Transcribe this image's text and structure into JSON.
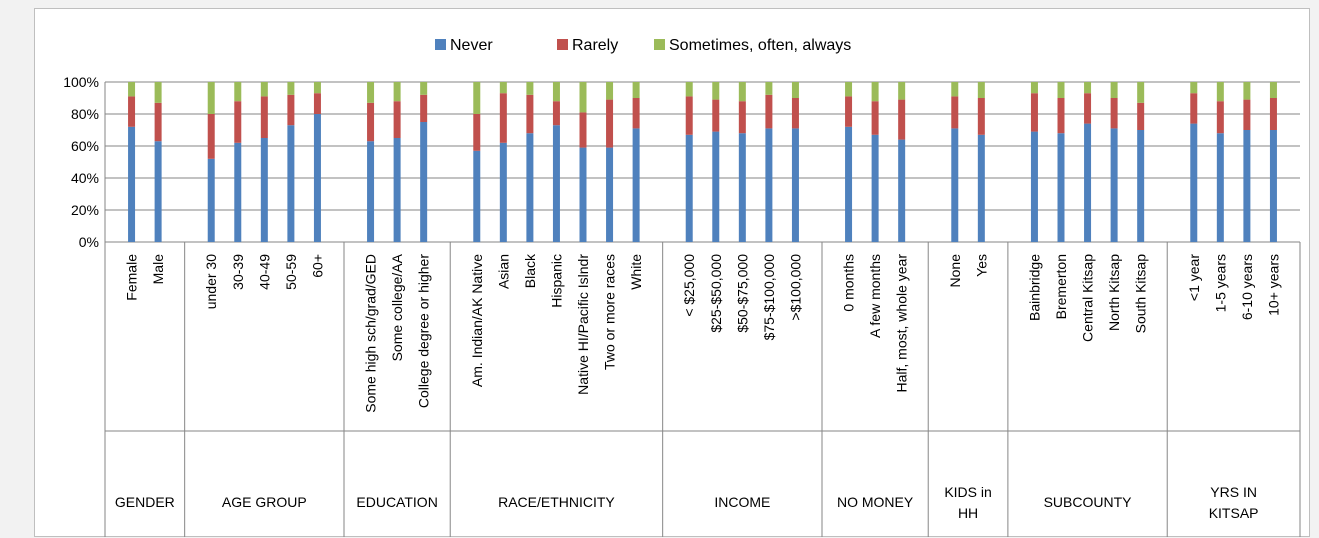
{
  "chart_data": {
    "type": "bar",
    "stacked": true,
    "percent": true,
    "yticks": [
      "0%",
      "20%",
      "40%",
      "60%",
      "80%",
      "100%"
    ],
    "ylim": [
      0,
      100
    ],
    "grid": true,
    "legend_position": "top",
    "series": [
      {
        "name": "Never",
        "color": "#4f81bd"
      },
      {
        "name": "Rarely",
        "color": "#c0504d"
      },
      {
        "name": "Sometimes, often, always",
        "color": "#9bbb59"
      }
    ],
    "groups": [
      {
        "label": [
          "GENDER"
        ],
        "categories": [
          {
            "label": "Female",
            "never": 72,
            "rarely": 19,
            "sometimes": 9
          },
          {
            "label": "Male",
            "never": 63,
            "rarely": 24,
            "sometimes": 13
          }
        ]
      },
      {
        "label": [
          "AGE GROUP"
        ],
        "categories": [
          {
            "label": "under 30",
            "never": 52,
            "rarely": 28,
            "sometimes": 20
          },
          {
            "label": "30-39",
            "never": 62,
            "rarely": 26,
            "sometimes": 12
          },
          {
            "label": "40-49",
            "never": 65,
            "rarely": 26,
            "sometimes": 9
          },
          {
            "label": "50-59",
            "never": 73,
            "rarely": 19,
            "sometimes": 8
          },
          {
            "label": "60+",
            "never": 80,
            "rarely": 13,
            "sometimes": 7
          }
        ]
      },
      {
        "label": [
          "EDUCATION"
        ],
        "categories": [
          {
            "label": "Some high sch/grad/GED",
            "never": 63,
            "rarely": 24,
            "sometimes": 13
          },
          {
            "label": "Some college/AA",
            "never": 65,
            "rarely": 23,
            "sometimes": 12
          },
          {
            "label": "College degree or higher",
            "never": 75,
            "rarely": 17,
            "sometimes": 8
          }
        ]
      },
      {
        "label": [
          "RACE/ETHNICITY"
        ],
        "categories": [
          {
            "label": "Am. Indian/AK Native",
            "never": 57,
            "rarely": 23,
            "sometimes": 20
          },
          {
            "label": "Asian",
            "never": 62,
            "rarely": 31,
            "sometimes": 7
          },
          {
            "label": "Black",
            "never": 68,
            "rarely": 24,
            "sometimes": 8
          },
          {
            "label": "Hispanic",
            "never": 73,
            "rarely": 15,
            "sometimes": 12
          },
          {
            "label": "Native HI/Pacific Islndr",
            "never": 59,
            "rarely": 22,
            "sometimes": 19
          },
          {
            "label": "Two or more races",
            "never": 59,
            "rarely": 30,
            "sometimes": 11
          },
          {
            "label": "White",
            "never": 71,
            "rarely": 19,
            "sometimes": 10
          }
        ]
      },
      {
        "label": [
          "INCOME"
        ],
        "categories": [
          {
            "label": "< $25,000",
            "never": 67,
            "rarely": 24,
            "sometimes": 9
          },
          {
            "label": "$25-$50,000",
            "never": 69,
            "rarely": 20,
            "sometimes": 11
          },
          {
            "label": "$50-$75,000",
            "never": 68,
            "rarely": 20,
            "sometimes": 12
          },
          {
            "label": "$75-$100,000",
            "never": 71,
            "rarely": 21,
            "sometimes": 8
          },
          {
            "label": ">$100,000",
            "never": 71,
            "rarely": 19,
            "sometimes": 10
          }
        ]
      },
      {
        "label": [
          "NO MONEY"
        ],
        "categories": [
          {
            "label": "0 months",
            "never": 72,
            "rarely": 19,
            "sometimes": 9
          },
          {
            "label": "A few months",
            "never": 67,
            "rarely": 21,
            "sometimes": 12
          },
          {
            "label": "Half, most, whole year",
            "never": 64,
            "rarely": 25,
            "sometimes": 11
          }
        ]
      },
      {
        "label": [
          "KIDS in",
          "HH"
        ],
        "categories": [
          {
            "label": "None",
            "never": 71,
            "rarely": 20,
            "sometimes": 9
          },
          {
            "label": "Yes",
            "never": 67,
            "rarely": 23,
            "sometimes": 10
          }
        ]
      },
      {
        "label": [
          "SUBCOUNTY"
        ],
        "categories": [
          {
            "label": "Bainbridge",
            "never": 69,
            "rarely": 24,
            "sometimes": 7
          },
          {
            "label": "Bremerton",
            "never": 68,
            "rarely": 22,
            "sometimes": 10
          },
          {
            "label": "Central Kitsap",
            "never": 74,
            "rarely": 19,
            "sometimes": 7
          },
          {
            "label": "North Kitsap",
            "never": 71,
            "rarely": 19,
            "sometimes": 10
          },
          {
            "label": "South Kitsap",
            "never": 70,
            "rarely": 17,
            "sometimes": 13
          }
        ]
      },
      {
        "label": [
          "YRS IN",
          "KITSAP"
        ],
        "categories": [
          {
            "label": "<1 year",
            "never": 74,
            "rarely": 19,
            "sometimes": 7
          },
          {
            "label": "1-5 years",
            "never": 68,
            "rarely": 20,
            "sometimes": 12
          },
          {
            "label": "6-10 years",
            "never": 70,
            "rarely": 19,
            "sometimes": 11
          },
          {
            "label": "10+ years",
            "never": 70,
            "rarely": 20,
            "sometimes": 10
          }
        ]
      }
    ]
  }
}
